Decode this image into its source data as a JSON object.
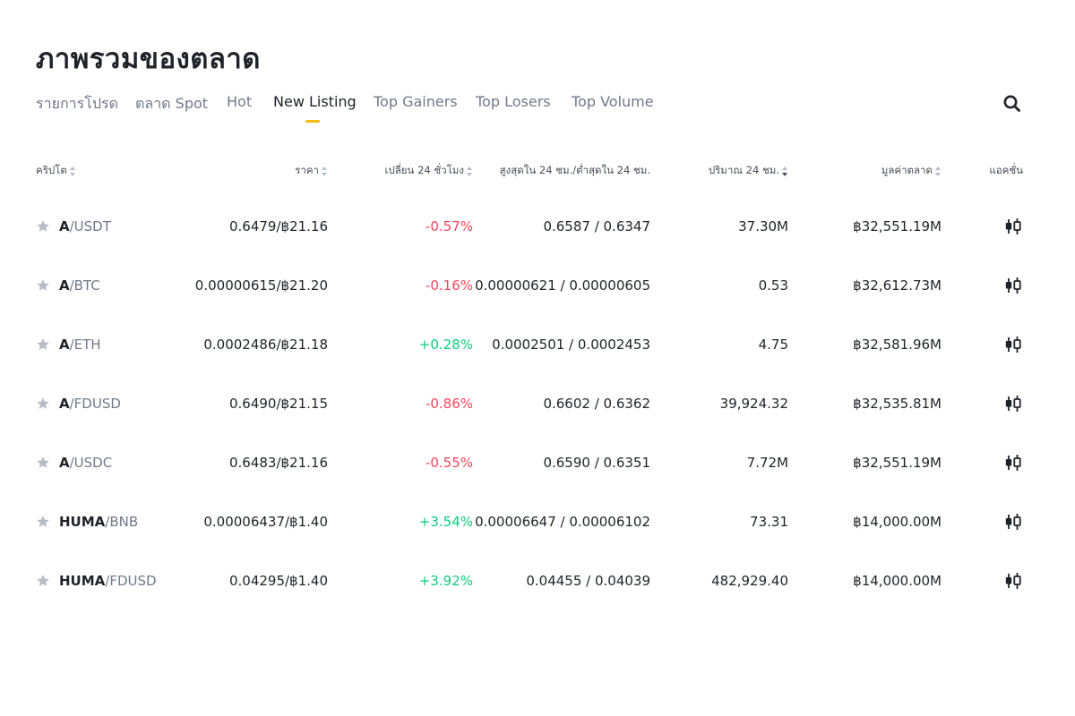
{
  "page_title": "ภาพรวมของตลาด",
  "tabs": [
    {
      "label": "รายการโปรด",
      "active": false
    },
    {
      "label": "ตลาด Spot",
      "active": false
    },
    {
      "label": "Hot",
      "active": false
    },
    {
      "label": "New Listing",
      "active": true
    },
    {
      "label": "Top Gainers",
      "active": false
    },
    {
      "label": "Top Losers",
      "active": false
    },
    {
      "label": "Top Volume",
      "active": false
    }
  ],
  "columns": {
    "crypto": "คริปโต",
    "price": "ราคา",
    "change": "เปลี่ยน 24 ชั่วโมง",
    "high_low": "สูงสุดใน 24 ชม./ต่ำสุดใน 24 ชม.",
    "volume": "ปริมาณ 24 ชม.",
    "market_cap": "มูลค่าตลาด",
    "action": "แอคชั่น"
  },
  "rows": [
    {
      "base": "A",
      "quote": "/USDT",
      "price": "0.6479/฿21.16",
      "change": "-0.57%",
      "direction": "down",
      "high_low": "0.6587 / 0.6347",
      "volume": "37.30M",
      "market_cap": "฿32,551.19M"
    },
    {
      "base": "A",
      "quote": "/BTC",
      "price": "0.00000615/฿21.20",
      "change": "-0.16%",
      "direction": "down",
      "high_low": "0.00000621 / 0.00000605",
      "volume": "0.53",
      "market_cap": "฿32,612.73M"
    },
    {
      "base": "A",
      "quote": "/ETH",
      "price": "0.0002486/฿21.18",
      "change": "+0.28%",
      "direction": "up",
      "high_low": "0.0002501 / 0.0002453",
      "volume": "4.75",
      "market_cap": "฿32,581.96M"
    },
    {
      "base": "A",
      "quote": "/FDUSD",
      "price": "0.6490/฿21.15",
      "change": "-0.86%",
      "direction": "down",
      "high_low": "0.6602 / 0.6362",
      "volume": "39,924.32",
      "market_cap": "฿32,535.81M"
    },
    {
      "base": "A",
      "quote": "/USDC",
      "price": "0.6483/฿21.16",
      "change": "-0.55%",
      "direction": "down",
      "high_low": "0.6590 / 0.6351",
      "volume": "7.72M",
      "market_cap": "฿32,551.19M"
    },
    {
      "base": "HUMA",
      "quote": "/BNB",
      "price": "0.00006437/฿1.40",
      "change": "+3.54%",
      "direction": "up",
      "high_low": "0.00006647 / 0.00006102",
      "volume": "73.31",
      "market_cap": "฿14,000.00M"
    },
    {
      "base": "HUMA",
      "quote": "/FDUSD",
      "price": "0.04295/฿1.40",
      "change": "+3.92%",
      "direction": "up",
      "high_low": "0.04455 / 0.04039",
      "volume": "482,929.40",
      "market_cap": "฿14,000.00M"
    }
  ],
  "icons": {
    "search": "search-icon",
    "favorite": "star-icon",
    "action": "candlestick-chart-icon"
  },
  "colors": {
    "accent": "#f0b90b",
    "negative": "#f6465d",
    "positive": "#0ecb81",
    "text_primary": "#1e2329",
    "text_secondary": "#707a8a",
    "star": "#b7bdc6"
  }
}
